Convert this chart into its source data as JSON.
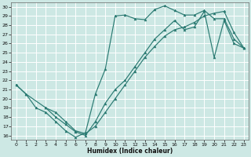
{
  "xlabel": "Humidex (Indice chaleur)",
  "ylabel": "",
  "xlim": [
    -0.5,
    23.5
  ],
  "ylim": [
    15.5,
    30.5
  ],
  "xticks": [
    0,
    1,
    2,
    3,
    4,
    5,
    6,
    7,
    8,
    9,
    10,
    11,
    12,
    13,
    14,
    15,
    16,
    17,
    18,
    19,
    20,
    21,
    22,
    23
  ],
  "yticks": [
    16,
    17,
    18,
    19,
    20,
    21,
    22,
    23,
    24,
    25,
    26,
    27,
    28,
    29,
    30
  ],
  "bg_color": "#cde8e4",
  "grid_color": "#ffffff",
  "line_color": "#2a7a72",
  "line1_x": [
    0,
    1,
    2,
    3,
    4,
    5,
    6,
    7,
    8,
    9,
    10,
    11,
    12,
    13,
    14,
    15,
    16,
    17,
    18,
    19,
    20,
    21,
    22,
    23
  ],
  "line1_y": [
    21.5,
    20.5,
    19.0,
    18.5,
    17.5,
    16.5,
    15.8,
    16.3,
    20.5,
    23.2,
    29.0,
    29.1,
    28.7,
    28.6,
    29.7,
    30.1,
    29.6,
    29.1,
    29.1,
    29.6,
    28.7,
    28.7,
    26.5,
    25.5
  ],
  "line2_x": [
    0,
    1,
    3,
    4,
    5,
    6,
    7,
    8,
    9,
    10,
    11,
    12,
    13,
    14,
    15,
    16,
    17,
    18,
    19,
    20,
    21,
    22,
    23
  ],
  "line2_y": [
    21.5,
    20.5,
    19.0,
    18.5,
    17.5,
    16.5,
    16.2,
    17.0,
    18.5,
    20.0,
    21.5,
    23.0,
    24.5,
    25.7,
    26.8,
    27.5,
    27.8,
    28.3,
    29.0,
    29.3,
    29.5,
    27.2,
    25.5
  ],
  "line3_x": [
    3,
    4,
    5,
    6,
    7,
    8,
    9,
    10,
    11,
    12,
    13,
    14,
    15,
    16,
    17,
    18,
    19,
    20,
    21,
    22,
    23
  ],
  "line3_y": [
    19.0,
    18.0,
    17.2,
    16.4,
    16.0,
    17.5,
    19.5,
    21.0,
    22.0,
    23.5,
    25.0,
    26.5,
    27.5,
    28.5,
    27.5,
    27.8,
    29.5,
    24.5,
    28.5,
    26.0,
    25.5
  ]
}
